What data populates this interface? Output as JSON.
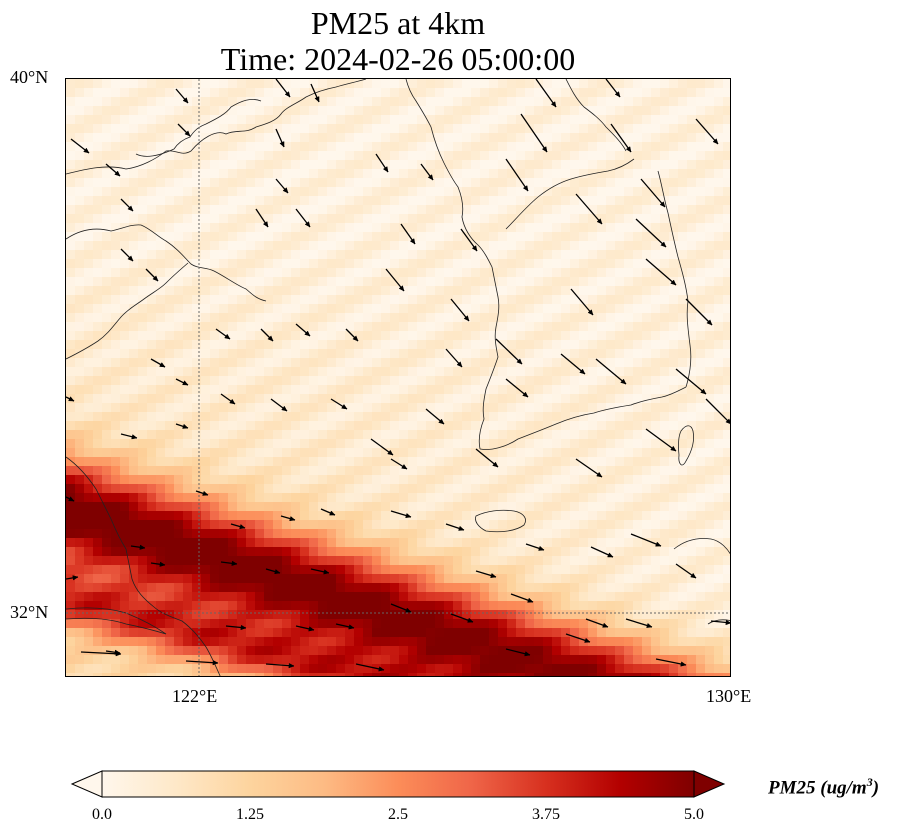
{
  "title": {
    "line1": "PM25 at 4km",
    "line2": "Time: 2024-02-26 05:00:00"
  },
  "axes": {
    "lat_labels": [
      "40°N",
      "32°N"
    ],
    "lon_labels": [
      "122°E",
      "130°E"
    ]
  },
  "colorbar": {
    "label_text": "PM25 (ug/m",
    "label_exponent": "3",
    "label_close": ")",
    "ticks": [
      "0.0",
      "1.25",
      "2.5",
      "3.75",
      "5.0"
    ],
    "range": [
      0.0,
      5.0
    ],
    "colormap": "OrRd",
    "extend": "both"
  },
  "chart_data": {
    "type": "heatmap",
    "variable": "PM25",
    "units": "ug/m^3",
    "level": "4km",
    "time": "2024-02-26 05:00:00",
    "lon_range": [
      120.0,
      130.0
    ],
    "lat_range": [
      31.0,
      40.0
    ],
    "gridlines": {
      "lons": [
        122,
        130
      ],
      "lats": [
        32,
        40
      ]
    },
    "pollution_band": {
      "description_values": "high PM25 values (approximately 3.75 to 5.0) along a diagonal band in the south-west; low values (near 0.0 to 0.6) over the north and east",
      "max_value_approx": 5.0,
      "min_value_approx": 0.0
    },
    "wind_vectors": "shown as arrows; north-west winds over northern part, westerly winds over southern part"
  }
}
